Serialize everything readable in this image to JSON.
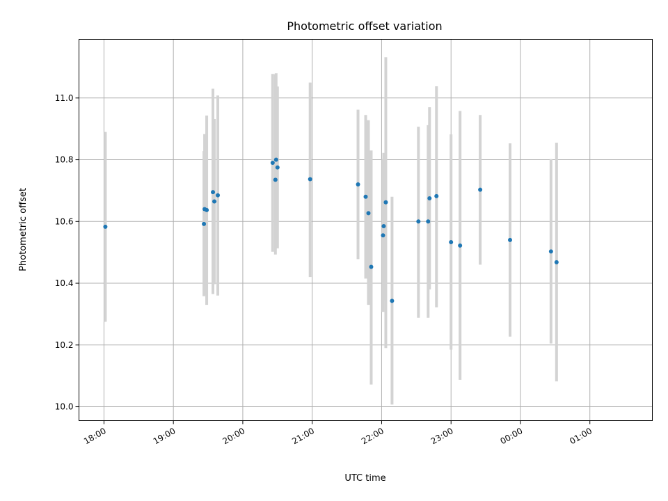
{
  "chart_data": {
    "type": "scatter",
    "title": "Photometric offset variation",
    "xlabel": "UTC time",
    "ylabel": "Photometric offset",
    "x_ticks": [
      {
        "value": 0,
        "label": "18:00"
      },
      {
        "value": 1,
        "label": "19:00"
      },
      {
        "value": 2,
        "label": "20:00"
      },
      {
        "value": 3,
        "label": "21:00"
      },
      {
        "value": 4,
        "label": "22:00"
      },
      {
        "value": 5,
        "label": "23:00"
      },
      {
        "value": 6,
        "label": "00:00"
      },
      {
        "value": 7,
        "label": "01:00"
      }
    ],
    "y_ticks": [
      {
        "value": 10.0,
        "label": "10.0"
      },
      {
        "value": 10.2,
        "label": "10.2"
      },
      {
        "value": 10.4,
        "label": "10.4"
      },
      {
        "value": 10.6,
        "label": "10.6"
      },
      {
        "value": 10.8,
        "label": "10.8"
      },
      {
        "value": 11.0,
        "label": "11.0"
      }
    ],
    "xlim": [
      -0.36,
      7.9
    ],
    "ylim": [
      9.955,
      11.19
    ],
    "grid": true,
    "colors": {
      "point": "#1f77b4",
      "error_bar": "#d3d3d3",
      "grid": "#b0b0b0"
    },
    "points": [
      {
        "t": 0.02,
        "y": 10.583,
        "err_low": 10.275,
        "err_high": 10.89
      },
      {
        "t": 1.44,
        "y": 10.592,
        "err_low": 10.358,
        "err_high": 10.828
      },
      {
        "t": 1.45,
        "y": 10.64,
        "err_low": 10.362,
        "err_high": 10.883
      },
      {
        "t": 1.48,
        "y": 10.637,
        "err_low": 10.33,
        "err_high": 10.943
      },
      {
        "t": 1.57,
        "y": 10.695,
        "err_low": 10.365,
        "err_high": 11.03
      },
      {
        "t": 1.59,
        "y": 10.665,
        "err_low": 10.397,
        "err_high": 10.932
      },
      {
        "t": 1.64,
        "y": 10.685,
        "err_low": 10.36,
        "err_high": 11.008
      },
      {
        "t": 2.43,
        "y": 10.79,
        "err_low": 10.502,
        "err_high": 11.078
      },
      {
        "t": 2.47,
        "y": 10.735,
        "err_low": 10.493,
        "err_high": 11.077
      },
      {
        "t": 2.48,
        "y": 10.8,
        "err_low": 10.52,
        "err_high": 11.08
      },
      {
        "t": 2.5,
        "y": 10.775,
        "err_low": 10.513,
        "err_high": 11.037
      },
      {
        "t": 2.97,
        "y": 10.737,
        "err_low": 10.42,
        "err_high": 11.05
      },
      {
        "t": 3.66,
        "y": 10.72,
        "err_low": 10.478,
        "err_high": 10.962
      },
      {
        "t": 3.77,
        "y": 10.68,
        "err_low": 10.415,
        "err_high": 10.945
      },
      {
        "t": 3.81,
        "y": 10.627,
        "err_low": 10.33,
        "err_high": 10.928
      },
      {
        "t": 3.85,
        "y": 10.453,
        "err_low": 10.072,
        "err_high": 10.83
      },
      {
        "t": 4.02,
        "y": 10.555,
        "err_low": 10.307,
        "err_high": 10.803
      },
      {
        "t": 4.03,
        "y": 10.585,
        "err_low": 10.345,
        "err_high": 10.822
      },
      {
        "t": 4.06,
        "y": 10.662,
        "err_low": 10.19,
        "err_high": 11.132
      },
      {
        "t": 4.15,
        "y": 10.343,
        "err_low": 10.007,
        "err_high": 10.68
      },
      {
        "t": 4.53,
        "y": 10.6,
        "err_low": 10.288,
        "err_high": 10.907
      },
      {
        "t": 4.67,
        "y": 10.6,
        "err_low": 10.288,
        "err_high": 10.912
      },
      {
        "t": 4.69,
        "y": 10.675,
        "err_low": 10.38,
        "err_high": 10.97
      },
      {
        "t": 4.79,
        "y": 10.682,
        "err_low": 10.322,
        "err_high": 11.038
      },
      {
        "t": 5.0,
        "y": 10.533,
        "err_low": 10.185,
        "err_high": 10.882
      },
      {
        "t": 5.13,
        "y": 10.522,
        "err_low": 10.087,
        "err_high": 10.958
      },
      {
        "t": 5.42,
        "y": 10.703,
        "err_low": 10.46,
        "err_high": 10.945
      },
      {
        "t": 5.85,
        "y": 10.54,
        "err_low": 10.227,
        "err_high": 10.853
      },
      {
        "t": 6.44,
        "y": 10.503,
        "err_low": 10.205,
        "err_high": 10.802
      },
      {
        "t": 6.52,
        "y": 10.468,
        "err_low": 10.082,
        "err_high": 10.855
      }
    ]
  }
}
